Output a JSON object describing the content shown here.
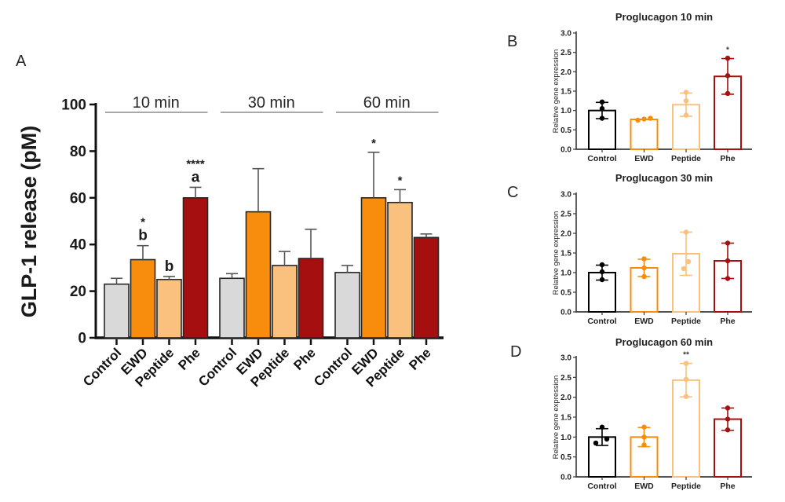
{
  "figure": {
    "background": "#ffffff",
    "panels": {
      "a": {
        "label": "A"
      },
      "b": {
        "label": "B"
      },
      "c": {
        "label": "C"
      },
      "d": {
        "label": "D"
      }
    }
  },
  "colors": {
    "control_fill": "#d9d9d9",
    "ewd": "#f88c0d",
    "peptide": "#fac17e",
    "phe": "#a50f0f",
    "control_outline": "#000000",
    "axis_dark": "#111111",
    "axis_gray": "#3a3a3a",
    "errorbar_gray": "#555555",
    "header_line": "#8c8c8c",
    "text_dark": "#1a1a1a"
  },
  "chart_data": [
    {
      "id": "A",
      "type": "bar",
      "subtype": "grouped-filled",
      "title": "",
      "xlabel": "",
      "ylabel": "GLP-1 release (pM)",
      "ylim": [
        0,
        100
      ],
      "yticks": [
        0,
        20,
        40,
        60,
        80,
        100
      ],
      "ytick_labels": [
        "0",
        "20",
        "40",
        "60",
        "80",
        "100"
      ],
      "categories": [
        "Control",
        "EWD",
        "Peptide",
        "Phe"
      ],
      "bar_colors": [
        "#d9d9d9",
        "#f88c0d",
        "#fac17e",
        "#a50f0f"
      ],
      "legend": "none",
      "grid": false,
      "groups": [
        {
          "label": "10 min",
          "values": [
            23,
            33.5,
            25,
            60
          ],
          "errors": [
            2.5,
            6,
            1.3,
            4.5
          ],
          "annotations": [
            [],
            [
              "b",
              "*"
            ],
            [
              "b"
            ],
            [
              "a",
              "****"
            ]
          ]
        },
        {
          "label": "30 min",
          "values": [
            25.5,
            54,
            31,
            34
          ],
          "errors": [
            2,
            18.5,
            6,
            12.5
          ],
          "annotations": [
            [],
            [],
            [],
            []
          ]
        },
        {
          "label": "60 min",
          "values": [
            28,
            60,
            58,
            43
          ],
          "errors": [
            3,
            19.5,
            5.5,
            1.5
          ],
          "annotations": [
            [],
            [
              "*"
            ],
            [
              "*"
            ],
            []
          ]
        }
      ]
    },
    {
      "id": "B",
      "type": "bar",
      "subtype": "outline-scatter",
      "title": "Proglucagon 10 min",
      "xlabel": "",
      "ylabel": "Relative gene expression",
      "ylim": [
        0,
        3
      ],
      "yticks": [
        0,
        0.5,
        1,
        1.5,
        2,
        2.5,
        3
      ],
      "ytick_labels": [
        "0.0",
        "0.5",
        "1.0",
        "1.5",
        "2.0",
        "2.5",
        "3.0"
      ],
      "categories": [
        "Control",
        "EWD",
        "Peptide",
        "Phe"
      ],
      "bar_colors": [
        "#000000",
        "#f88c0d",
        "#fac17e",
        "#a50f0f"
      ],
      "grid": false,
      "values": [
        1.0,
        0.77,
        1.15,
        1.88
      ],
      "errors": [
        0.21,
        0,
        0.3,
        0.46
      ],
      "points": [
        [
          0.8,
          1.05,
          1.22
        ],
        [
          0.75,
          0.78,
          0.8
        ],
        [
          0.88,
          1.25,
          1.47
        ],
        [
          1.44,
          1.9,
          2.35
        ]
      ],
      "points_dx": [
        [
          0,
          0,
          0
        ],
        [
          -8,
          0,
          8
        ],
        [
          0,
          0,
          0
        ],
        [
          0,
          0,
          0
        ]
      ],
      "annotations": [
        "",
        "",
        "",
        "*"
      ]
    },
    {
      "id": "C",
      "type": "bar",
      "subtype": "outline-scatter",
      "title": "Proglucagon 30 min",
      "xlabel": "",
      "ylabel": "Relative gene expression",
      "ylim": [
        0,
        3
      ],
      "yticks": [
        0,
        0.5,
        1,
        1.5,
        2,
        2.5,
        3
      ],
      "ytick_labels": [
        "0.0",
        "0.5",
        "1.0",
        "1.5",
        "2.0",
        "2.5",
        "3.0"
      ],
      "categories": [
        "Control",
        "EWD",
        "Peptide",
        "Phe"
      ],
      "bar_colors": [
        "#000000",
        "#f88c0d",
        "#fac17e",
        "#a50f0f"
      ],
      "grid": false,
      "values": [
        1.0,
        1.12,
        1.48,
        1.3
      ],
      "errors": [
        0.19,
        0.22,
        0.55,
        0.45
      ],
      "points": [
        [
          0.82,
          1.02,
          1.2
        ],
        [
          0.9,
          1.12,
          1.35
        ],
        [
          1.1,
          1.28,
          2.03
        ],
        [
          0.85,
          1.3,
          1.75
        ]
      ],
      "points_dx": [
        [
          0,
          0,
          0
        ],
        [
          0,
          0,
          0
        ],
        [
          -3,
          3,
          0
        ],
        [
          0,
          0,
          0
        ]
      ],
      "annotations": [
        "",
        "",
        "",
        ""
      ]
    },
    {
      "id": "D",
      "type": "bar",
      "subtype": "outline-scatter",
      "title": "Proglucagon 60 min",
      "xlabel": "",
      "ylabel": "Relative gene expression",
      "ylim": [
        0,
        3
      ],
      "yticks": [
        0,
        0.5,
        1,
        1.5,
        2,
        2.5,
        3
      ],
      "ytick_labels": [
        "0.0",
        "0.5",
        "1.0",
        "1.5",
        "2.0",
        "2.5",
        "3.0"
      ],
      "categories": [
        "Control",
        "EWD",
        "Peptide",
        "Phe"
      ],
      "bar_colors": [
        "#000000",
        "#f88c0d",
        "#fac17e",
        "#a50f0f"
      ],
      "grid": false,
      "values": [
        1.0,
        1.0,
        2.43,
        1.45
      ],
      "errors": [
        0.21,
        0.24,
        0.42,
        0.28
      ],
      "points": [
        [
          0.85,
          0.95,
          1.25
        ],
        [
          0.8,
          1.0,
          1.25
        ],
        [
          2.02,
          2.45,
          2.85
        ],
        [
          1.18,
          1.45,
          1.73
        ]
      ],
      "points_dx": [
        [
          -8,
          6,
          0
        ],
        [
          0,
          0,
          0
        ],
        [
          0,
          0,
          0
        ],
        [
          0,
          0,
          0
        ]
      ],
      "annotations": [
        "",
        "",
        "**",
        ""
      ]
    }
  ]
}
